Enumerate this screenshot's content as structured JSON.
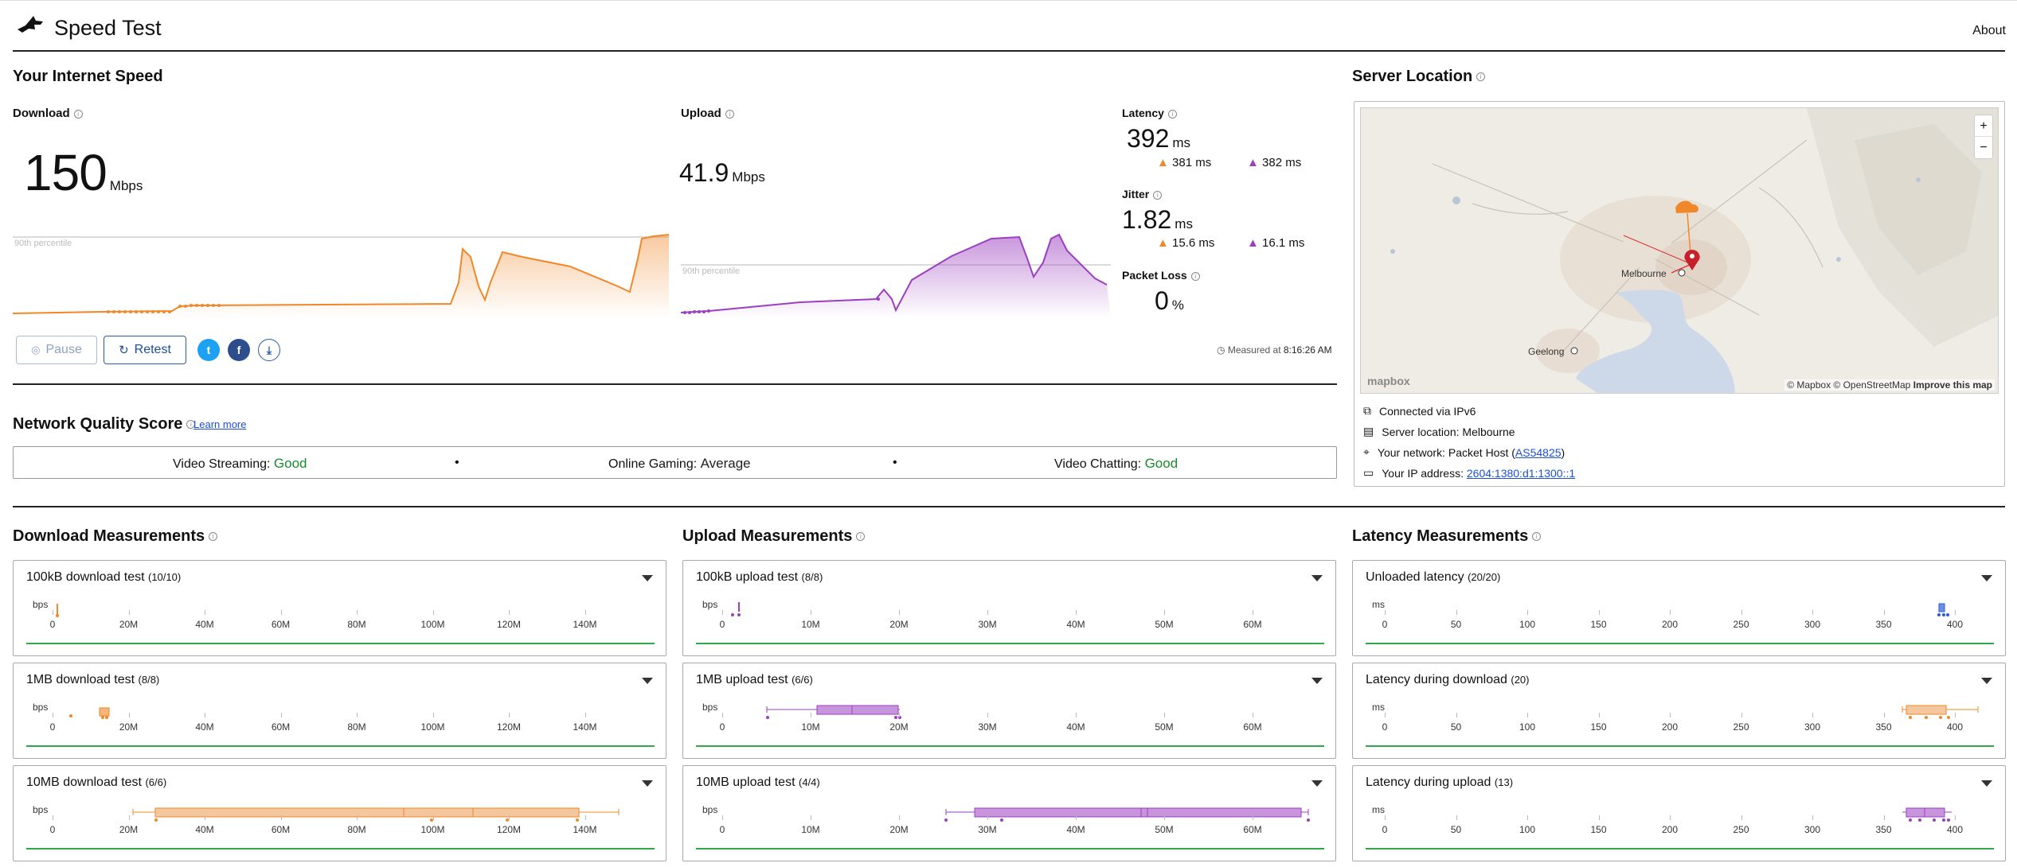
{
  "app": {
    "title": "Speed Test",
    "about": "About"
  },
  "speed": {
    "heading": "Your Internet Speed",
    "download": {
      "label": "Download",
      "value": "150",
      "unit": "Mbps",
      "percentile": "90th percentile"
    },
    "upload": {
      "label": "Upload",
      "value": "41.9",
      "unit": "Mbps",
      "percentile": "90th percentile"
    },
    "latency": {
      "label": "Latency",
      "value": "392",
      "unit": "ms",
      "down": "381",
      "up": "382",
      "sub_unit": "ms"
    },
    "jitter": {
      "label": "Jitter",
      "value": "1.82",
      "unit": "ms",
      "down": "15.6",
      "up": "16.1",
      "sub_unit": "ms"
    },
    "packet_loss": {
      "label": "Packet Loss",
      "value": "0",
      "unit": "%"
    },
    "buttons": {
      "pause": "Pause",
      "retest": "Retest"
    },
    "measured": {
      "label": "Measured at",
      "time": "8:16:26 AM"
    }
  },
  "nqs": {
    "heading": "Network Quality Score",
    "learn_more": "Learn more",
    "items": [
      {
        "label": "Video Streaming:",
        "value": "Good"
      },
      {
        "label": "Online Gaming:",
        "value": "Average"
      },
      {
        "label": "Video Chatting:",
        "value": "Good"
      }
    ],
    "sep": "•"
  },
  "server": {
    "heading": "Server Location",
    "map": {
      "city1": "Melbourne",
      "city2": "Geelong",
      "attribution": "© Mapbox © OpenStreetMap",
      "improve": "Improve this map",
      "logo": "mapbox",
      "zoom_in": "+",
      "zoom_out": "−"
    },
    "connected": "Connected via IPv6",
    "location_label": "Server location:",
    "location": "Melbourne",
    "network_label": "Your network:",
    "network": "Packet Host (",
    "asn": "AS54825",
    "network_close": ")",
    "ip_label": "Your IP address:",
    "ip": "2604:1380:d1:1300::1"
  },
  "measurements": {
    "download": {
      "heading": "Download Measurements",
      "unit": "bps",
      "ticks": [
        "0",
        "20M",
        "40M",
        "60M",
        "80M",
        "100M",
        "120M",
        "140M"
      ],
      "cards": [
        {
          "title": "100kB download test",
          "count": "(10/10)"
        },
        {
          "title": "1MB download test",
          "count": "(8/8)"
        },
        {
          "title": "10MB download test",
          "count": "(6/6)"
        }
      ]
    },
    "upload": {
      "heading": "Upload Measurements",
      "unit": "bps",
      "ticks": [
        "0",
        "10M",
        "20M",
        "30M",
        "40M",
        "50M",
        "60M"
      ],
      "cards": [
        {
          "title": "100kB upload test",
          "count": "(8/8)"
        },
        {
          "title": "1MB upload test",
          "count": "(6/6)"
        },
        {
          "title": "10MB upload test",
          "count": "(4/4)"
        }
      ]
    },
    "latency": {
      "heading": "Latency Measurements",
      "unit": "ms",
      "ticks": [
        "0",
        "50",
        "100",
        "150",
        "200",
        "250",
        "300",
        "350",
        "400"
      ],
      "cards": [
        {
          "title": "Unloaded latency",
          "count": "(20/20)"
        },
        {
          "title": "Latency during download",
          "count": "(20)"
        },
        {
          "title": "Latency during upload",
          "count": "(13)"
        }
      ]
    }
  },
  "colors": {
    "download": "#f0882a",
    "upload": "#9b3fc0",
    "unloaded": "#2d5bd3",
    "good": "#1a8a2e",
    "accent": "#2a5fa5"
  }
}
